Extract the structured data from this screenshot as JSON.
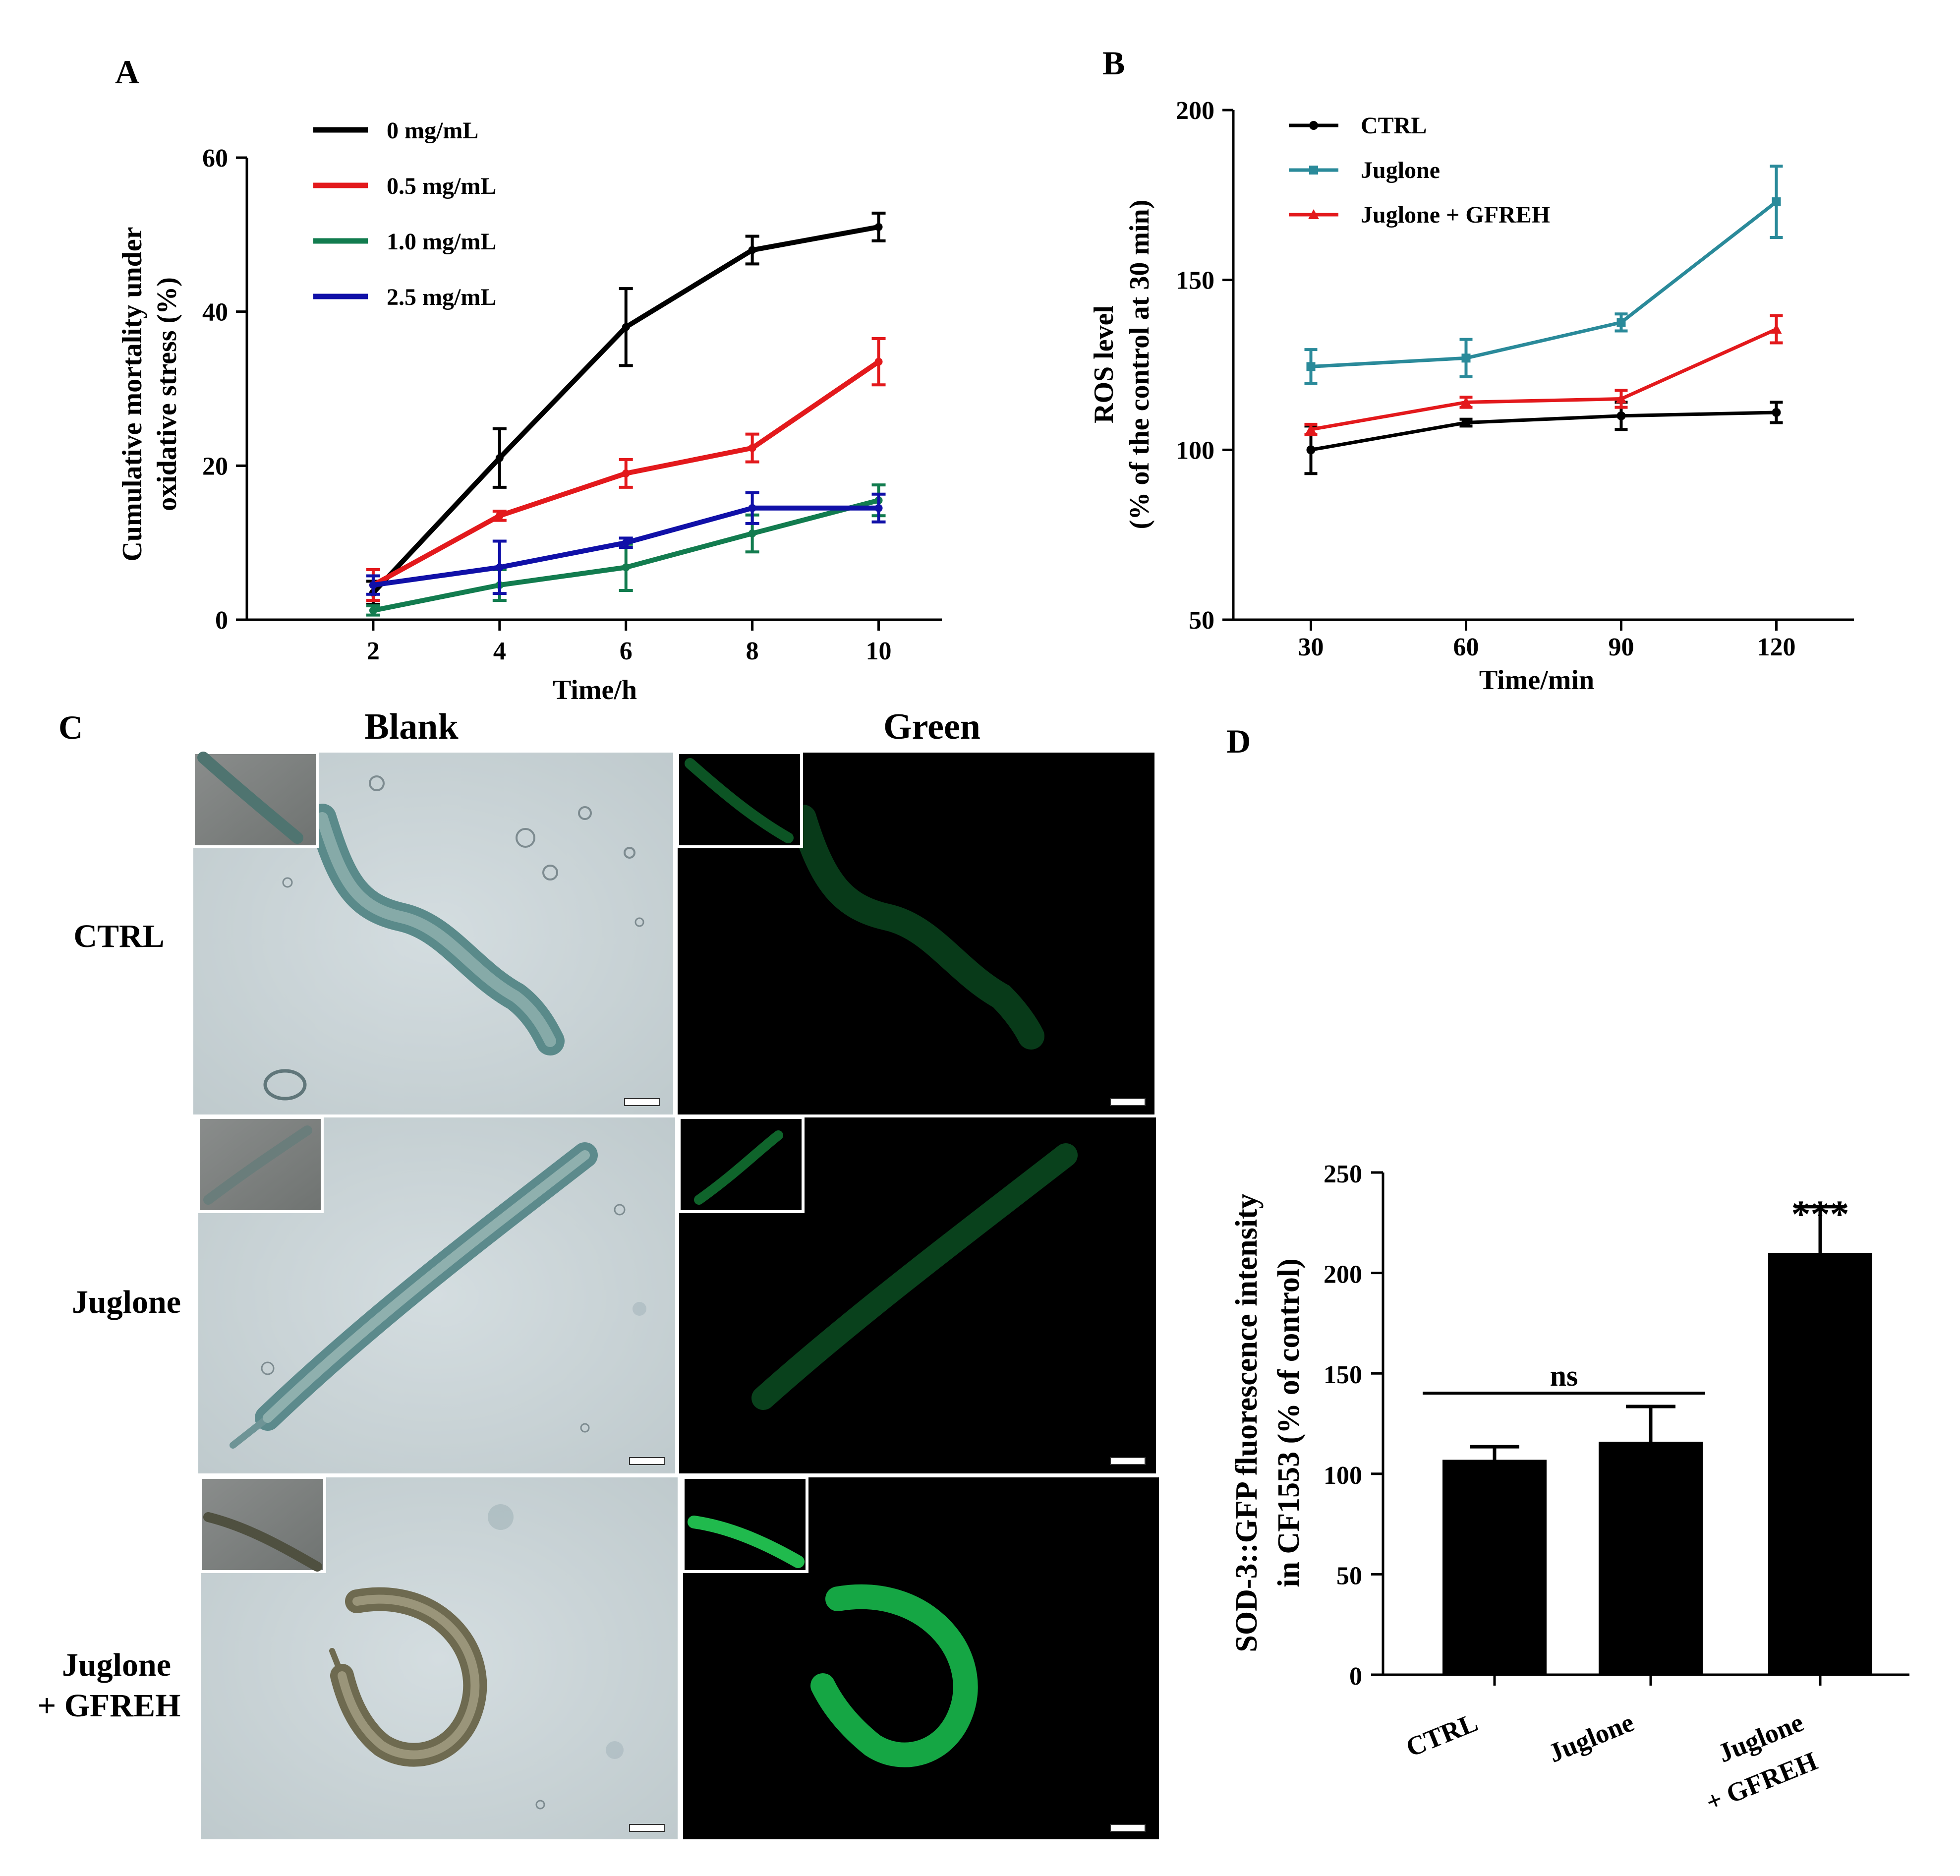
{
  "panels": {
    "A": "A",
    "B": "B",
    "C": "C",
    "D": "D"
  },
  "chart_data": [
    {
      "panel": "A",
      "type": "line",
      "xlabel": "Time/h",
      "ylabel_line1": "Cumulative mortality under",
      "ylabel_line2": "oxidative stress (%)",
      "x": [
        2,
        4,
        6,
        8,
        10
      ],
      "xlim": [
        0,
        11
      ],
      "ylim": [
        0,
        60
      ],
      "xticks": [
        2,
        4,
        6,
        8,
        10
      ],
      "yticks": [
        0,
        20,
        40,
        60
      ],
      "legend_position": "top-left",
      "series": [
        {
          "name": "0 mg/mL",
          "color": "#000000",
          "values": [
            3.5,
            21,
            38,
            48,
            51
          ],
          "errors": [
            1.5,
            3.8,
            5.0,
            1.8,
            1.8
          ]
        },
        {
          "name": "0.5 mg/mL",
          "color": "#e3191c",
          "values": [
            4.5,
            13.5,
            19,
            22.3,
            33.5
          ],
          "errors": [
            2.0,
            0.6,
            1.8,
            1.8,
            3.0
          ]
        },
        {
          "name": "1.0 mg/mL",
          "color": "#127c4f",
          "values": [
            1.2,
            4.5,
            6.8,
            11.2,
            15.5
          ],
          "errors": [
            0.6,
            2.0,
            3.0,
            2.4,
            2.0
          ]
        },
        {
          "name": "2.5 mg/mL",
          "color": "#1010a8",
          "values": [
            4.5,
            6.8,
            10,
            14.5,
            14.5
          ],
          "errors": [
            1.2,
            3.4,
            0.6,
            2.0,
            1.8
          ]
        }
      ]
    },
    {
      "panel": "B",
      "type": "line",
      "xlabel": "Time/min",
      "ylabel_line1": "ROS level",
      "ylabel_line2": "(% of the control at 30 min)",
      "x": [
        30,
        60,
        90,
        120
      ],
      "x_points": [
        30,
        60,
        90,
        120
      ],
      "xlim": [
        15,
        135
      ],
      "ylim": [
        50,
        200
      ],
      "xticks": [
        30,
        60,
        90,
        120
      ],
      "yticks": [
        50,
        100,
        150,
        200
      ],
      "legend_position": "top-left",
      "series": [
        {
          "name": "CTRL",
          "color": "#000000",
          "marker": "circle",
          "values": [
            100,
            108,
            110,
            111
          ],
          "errors": [
            7,
            1,
            4,
            3
          ]
        },
        {
          "name": "Juglone",
          "color": "#2a8a9a",
          "marker": "square",
          "values": [
            124.5,
            127,
            137.5,
            173
          ],
          "errors": [
            5,
            5.5,
            2.5,
            10.5
          ]
        },
        {
          "name": "Juglone + GFREH",
          "color": "#e3191c",
          "marker": "triangle",
          "values": [
            106,
            114,
            115,
            135.5
          ],
          "errors": [
            1.5,
            1.5,
            2.5,
            4
          ]
        }
      ]
    },
    {
      "panel": "D",
      "type": "bar",
      "categories": [
        "CTRL",
        "Juglone",
        "Juglone\n+ GFREH"
      ],
      "category_line1": [
        "CTRL",
        "Juglone",
        "Juglone"
      ],
      "category_line2": [
        "",
        "",
        "+ GFREH"
      ],
      "values": [
        107,
        116,
        210
      ],
      "errors": [
        6.5,
        17.5,
        23
      ],
      "ylabel_line1": "SOD-3::GFP fluorescence intensity",
      "ylabel_line2": "in CF1553 (% of control)",
      "ylim": [
        0,
        250
      ],
      "yticks": [
        0,
        50,
        100,
        150,
        200,
        250
      ],
      "annotations": {
        "ns": "ns",
        "significance": "***"
      },
      "color": "#000000"
    }
  ],
  "panel_c": {
    "col_titles": [
      "Blank",
      "Green"
    ],
    "row_labels": [
      {
        "line1": "CTRL",
        "line2": ""
      },
      {
        "line1": "Juglone",
        "line2": ""
      },
      {
        "line1": "Juglone",
        "line2": "+ GFREH"
      }
    ],
    "fluorescence_levels": [
      0.3,
      0.4,
      0.9
    ]
  }
}
